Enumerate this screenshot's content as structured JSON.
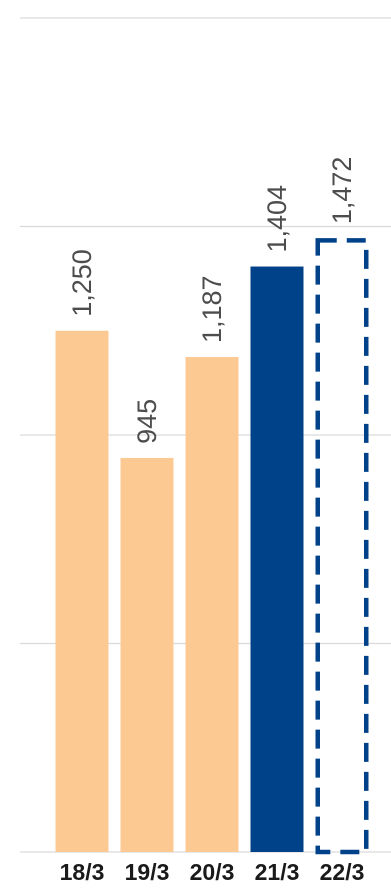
{
  "chart_data": {
    "type": "bar",
    "title": "",
    "xlabel": "",
    "ylabel": "",
    "categories": [
      "18/3",
      "19/3",
      "20/3",
      "21/3",
      "22/3"
    ],
    "values": [
      1250,
      945,
      1187,
      1404,
      1472
    ],
    "value_labels": [
      "1,250",
      "945",
      "1,187",
      "1,404",
      "1,472"
    ],
    "bar_styles": [
      "solid",
      "solid",
      "solid",
      "solid",
      "dashed-outline"
    ],
    "colors": {
      "past_bar": "#fdc993",
      "current_bar": "#00428a",
      "forecast_outline": "#00428a",
      "grid": "#d9d9d9",
      "value_label": "#4d4d4d",
      "tick_label": "#1a1a1a"
    },
    "bar_colors": [
      "#fdc993",
      "#fdc993",
      "#fdc993",
      "#00428a",
      "#00428a"
    ],
    "ylim": [
      0,
      2000
    ],
    "ygrid_values": [
      0,
      500,
      1000,
      1500,
      2000
    ],
    "grid": true,
    "legend": "none"
  }
}
